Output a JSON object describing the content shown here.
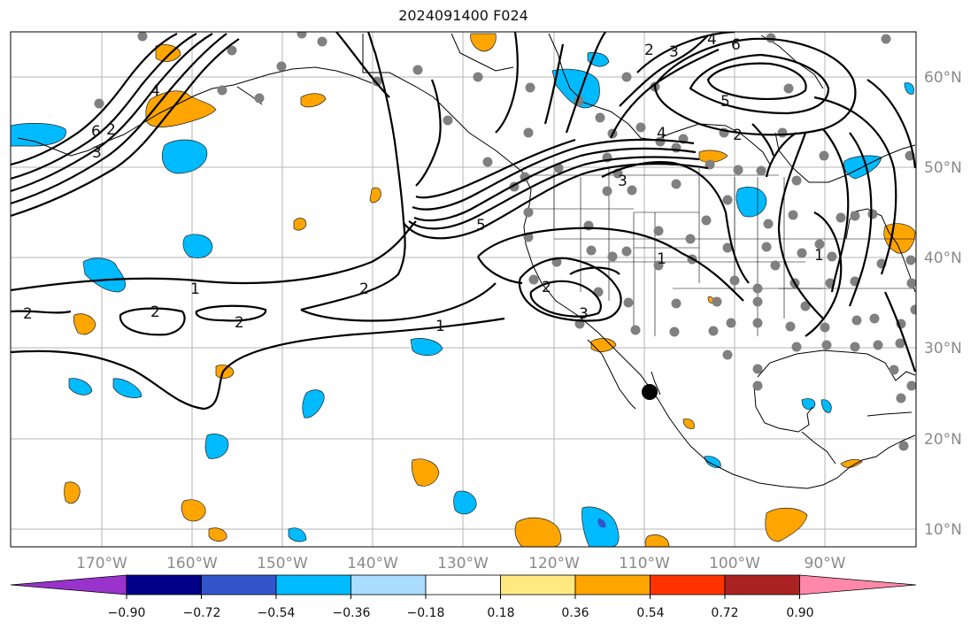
{
  "title": "2024091400 F024",
  "lat_labels": [
    "60°N",
    "50°N",
    "40°N",
    "30°N",
    "20°N",
    "10°N"
  ],
  "lon_labels": [
    "170°W",
    "160°W",
    "150°W",
    "140°W",
    "130°W",
    "120°W",
    "110°W",
    "100°W",
    "90°W"
  ],
  "colorbar": {
    "tick_labels": [
      "−0.90",
      "−0.72",
      "−0.54",
      "−0.36",
      "−0.18",
      "0.18",
      "0.36",
      "0.54",
      "0.72",
      "0.90"
    ],
    "colors": [
      "#9933cc",
      "#000088",
      "#3355cc",
      "#00bbff",
      "#aaddff",
      "#ffffff",
      "#ffe980",
      "#ffa500",
      "#ff3300",
      "#aa2222",
      "#ff88aa"
    ]
  },
  "contour_labels": [
    "6",
    "2",
    "3",
    "4",
    "1",
    "2",
    "2",
    "2",
    "2",
    "1",
    "2",
    "3",
    "1",
    "3",
    "2",
    "3",
    "4",
    "6",
    "5",
    "4",
    "2",
    "5",
    "1"
  ]
}
